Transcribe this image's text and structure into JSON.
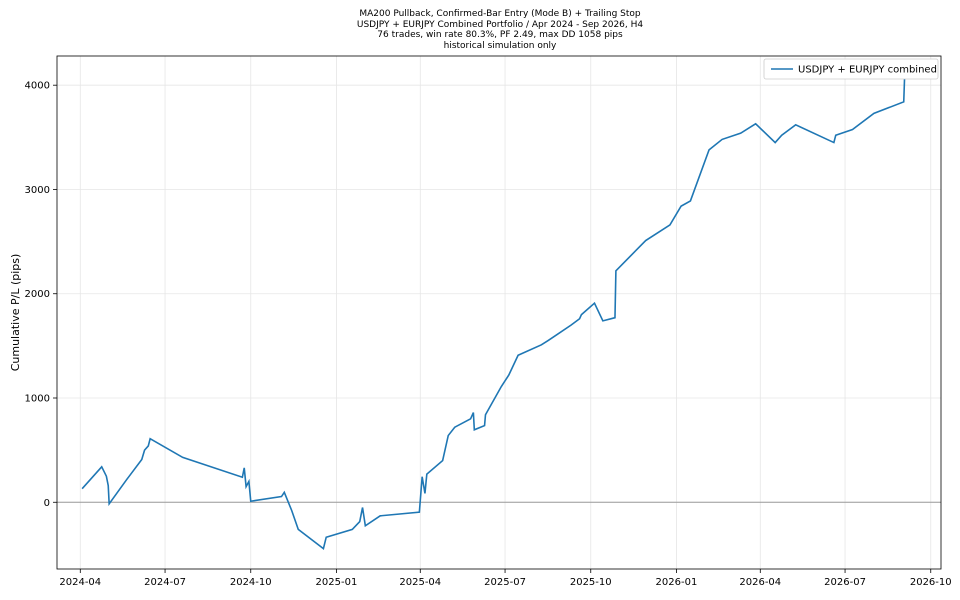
{
  "titles": {
    "line1": "MA200 Pullback, Confirmed-Bar Entry (Mode B) + Trailing Stop",
    "line2": "USDJPY + EURJPY Combined Portfolio / Apr 2024 - Sep 2026, H4",
    "line3": "76 trades, win rate 80.3%, PF 2.49, max DD 1058 pips",
    "line4": "historical simulation only"
  },
  "chart_data": {
    "type": "line",
    "ylabel": "Cumulative P/L (pips)",
    "xlabel": "",
    "x_axis_type": "date",
    "xlim": [
      "2024-03-07",
      "2026-10-12"
    ],
    "ylim": [
      -640,
      4280
    ],
    "x_ticks": [
      "2024-04",
      "2024-07",
      "2024-10",
      "2025-01",
      "2025-04",
      "2025-07",
      "2025-10",
      "2026-01",
      "2026-04",
      "2026-07",
      "2026-10"
    ],
    "y_ticks": [
      0,
      1000,
      2000,
      3000,
      4000
    ],
    "grid": true,
    "zero_line": true,
    "legend": {
      "location": "upper right",
      "entries": [
        "USDJPY + EURJPY combined"
      ]
    },
    "colors": {
      "series": "#1f77b4",
      "grid": "#e6e6e6",
      "zero_line": "#9a9a9a"
    },
    "series": [
      {
        "name": "USDJPY + EURJPY combined",
        "points": [
          [
            "2024-04-03",
            130
          ],
          [
            "2024-04-24",
            340
          ],
          [
            "2024-04-29",
            250
          ],
          [
            "2024-05-01",
            160
          ],
          [
            "2024-05-02",
            -15
          ],
          [
            "2024-05-21",
            220
          ],
          [
            "2024-06-06",
            410
          ],
          [
            "2024-06-09",
            500
          ],
          [
            "2024-06-13",
            540
          ],
          [
            "2024-06-15",
            610
          ],
          [
            "2024-07-20",
            430
          ],
          [
            "2024-09-22",
            240
          ],
          [
            "2024-09-24",
            330
          ],
          [
            "2024-09-26",
            150
          ],
          [
            "2024-09-29",
            200
          ],
          [
            "2024-10-01",
            10
          ],
          [
            "2024-11-03",
            55
          ],
          [
            "2024-11-06",
            95
          ],
          [
            "2024-11-14",
            -80
          ],
          [
            "2024-11-21",
            -260
          ],
          [
            "2024-12-18",
            -445
          ],
          [
            "2024-12-21",
            -335
          ],
          [
            "2025-01-18",
            -260
          ],
          [
            "2025-01-26",
            -185
          ],
          [
            "2025-01-29",
            -50
          ],
          [
            "2025-02-01",
            -225
          ],
          [
            "2025-02-17",
            -130
          ],
          [
            "2025-03-31",
            -95
          ],
          [
            "2025-04-03",
            245
          ],
          [
            "2025-04-06",
            85
          ],
          [
            "2025-04-08",
            270
          ],
          [
            "2025-04-25",
            400
          ],
          [
            "2025-05-01",
            640
          ],
          [
            "2025-05-08",
            720
          ],
          [
            "2025-05-25",
            800
          ],
          [
            "2025-05-28",
            860
          ],
          [
            "2025-05-29",
            695
          ],
          [
            "2025-06-09",
            735
          ],
          [
            "2025-06-10",
            840
          ],
          [
            "2025-06-27",
            1110
          ],
          [
            "2025-07-05",
            1220
          ],
          [
            "2025-07-15",
            1410
          ],
          [
            "2025-08-09",
            1510
          ],
          [
            "2025-08-16",
            1550
          ],
          [
            "2025-08-26",
            1610
          ],
          [
            "2025-09-10",
            1700
          ],
          [
            "2025-09-19",
            1760
          ],
          [
            "2025-09-21",
            1800
          ],
          [
            "2025-10-05",
            1910
          ],
          [
            "2025-10-14",
            1740
          ],
          [
            "2025-10-27",
            1770
          ],
          [
            "2025-10-28",
            2220
          ],
          [
            "2025-11-29",
            2510
          ],
          [
            "2025-12-25",
            2660
          ],
          [
            "2026-01-06",
            2840
          ],
          [
            "2026-01-16",
            2890
          ],
          [
            "2026-02-05",
            3380
          ],
          [
            "2026-02-19",
            3480
          ],
          [
            "2026-03-11",
            3540
          ],
          [
            "2026-03-27",
            3630
          ],
          [
            "2026-04-17",
            3450
          ],
          [
            "2026-04-24",
            3520
          ],
          [
            "2026-05-09",
            3620
          ],
          [
            "2026-06-19",
            3450
          ],
          [
            "2026-06-21",
            3520
          ],
          [
            "2026-07-09",
            3575
          ],
          [
            "2026-08-01",
            3730
          ],
          [
            "2026-09-02",
            3840
          ],
          [
            "2026-09-03",
            4100
          ]
        ]
      }
    ]
  }
}
